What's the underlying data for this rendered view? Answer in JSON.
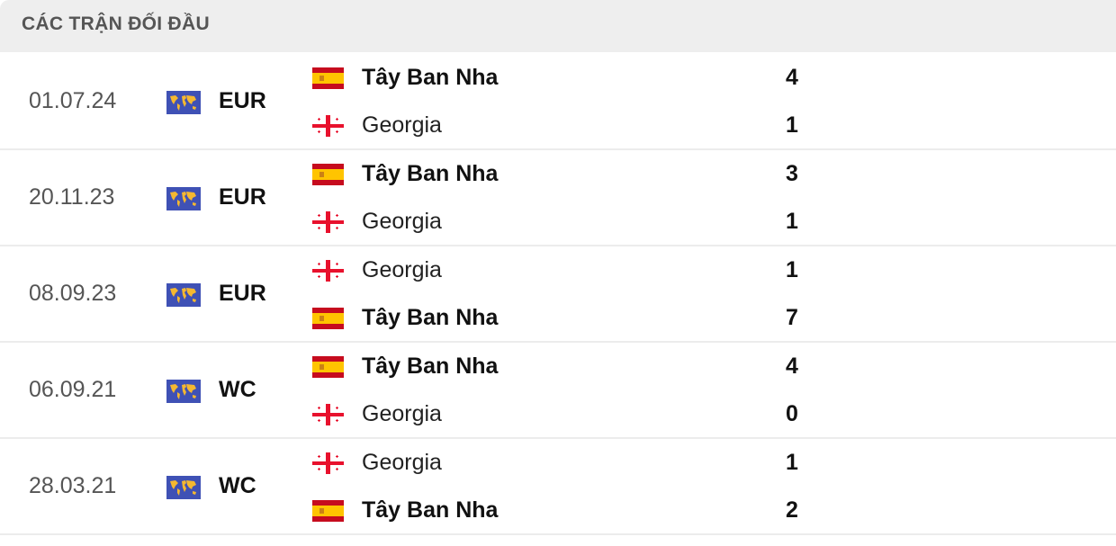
{
  "header": {
    "title": "CÁC TRẬN ĐỐI ĐẦU"
  },
  "matches": [
    {
      "date": "01.07.24",
      "competition": "EUR",
      "teams": [
        {
          "name": "Tây Ban Nha",
          "flag": "spain",
          "score": "4",
          "winner": true
        },
        {
          "name": "Georgia",
          "flag": "georgia",
          "score": "1",
          "winner": false
        }
      ]
    },
    {
      "date": "20.11.23",
      "competition": "EUR",
      "teams": [
        {
          "name": "Tây Ban Nha",
          "flag": "spain",
          "score": "3",
          "winner": true
        },
        {
          "name": "Georgia",
          "flag": "georgia",
          "score": "1",
          "winner": false
        }
      ]
    },
    {
      "date": "08.09.23",
      "competition": "EUR",
      "teams": [
        {
          "name": "Georgia",
          "flag": "georgia",
          "score": "1",
          "winner": false
        },
        {
          "name": "Tây Ban Nha",
          "flag": "spain",
          "score": "7",
          "winner": true
        }
      ]
    },
    {
      "date": "06.09.21",
      "competition": "WC",
      "teams": [
        {
          "name": "Tây Ban Nha",
          "flag": "spain",
          "score": "4",
          "winner": true
        },
        {
          "name": "Georgia",
          "flag": "georgia",
          "score": "0",
          "winner": false
        }
      ]
    },
    {
      "date": "28.03.21",
      "competition": "WC",
      "teams": [
        {
          "name": "Georgia",
          "flag": "georgia",
          "score": "1",
          "winner": false
        },
        {
          "name": "Tây Ban Nha",
          "flag": "spain",
          "score": "2",
          "winner": true
        }
      ]
    }
  ],
  "colors": {
    "header_bg": "#eeeeee",
    "competition_icon_bg": "#3f51b5",
    "competition_icon_fg": "#f5b830",
    "spain_red": "#c60b1e",
    "spain_yellow": "#ffc400",
    "georgia_red": "#e8112d"
  }
}
